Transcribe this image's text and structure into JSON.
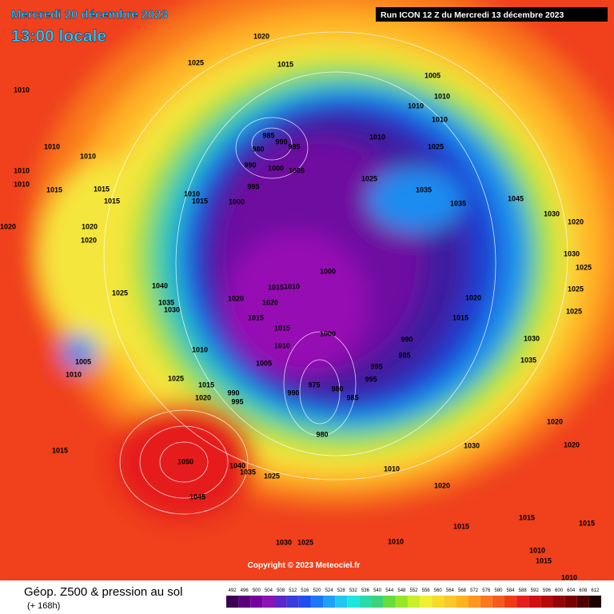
{
  "header": {
    "date": "Mercredi 20 décembre 2023",
    "time": "13:00 locale",
    "run": "Run ICON 12 Z du Mercredi 13 décembre 2023"
  },
  "copyright": "Copyright © 2023 Meteociel.fr",
  "legend": {
    "title": "Géop. Z500 & pression au sol",
    "subtitle": "(+ 168h)",
    "ticks": [
      492,
      496,
      500,
      504,
      508,
      512,
      516,
      520,
      524,
      528,
      532,
      536,
      540,
      544,
      548,
      552,
      556,
      560,
      564,
      568,
      572,
      576,
      580,
      584,
      588,
      592,
      596,
      600,
      604,
      608,
      612
    ]
  },
  "isobar_labels": [
    1020,
    1025,
    1015,
    1005,
    1010,
    1010,
    1010,
    1010,
    985,
    990,
    980,
    995,
    1010,
    1025,
    1010,
    1010,
    990,
    1000,
    1005,
    995,
    1010,
    1010,
    1015,
    1015,
    1015,
    1010,
    1015,
    1000,
    1025,
    1035,
    1035,
    1045,
    1030,
    1020,
    1020,
    1020,
    1020,
    1025,
    1040,
    1035,
    1030,
    1000,
    1015,
    1010,
    1020,
    1020,
    1015,
    1015,
    1010,
    1010,
    1005,
    1000,
    990,
    985,
    995,
    995,
    975,
    980,
    990,
    985,
    980,
    1025,
    1020,
    1015,
    990,
    995,
    1005,
    1010,
    1015,
    1050,
    1045,
    1040,
    1035,
    1025,
    1030,
    1020,
    1020,
    1020,
    1010,
    1015,
    1015,
    1015,
    1030,
    1025,
    1010,
    1025,
    1025,
    1015,
    1020,
    1025,
    1030,
    1030,
    1035,
    1010,
    1015,
    1010
  ]
}
